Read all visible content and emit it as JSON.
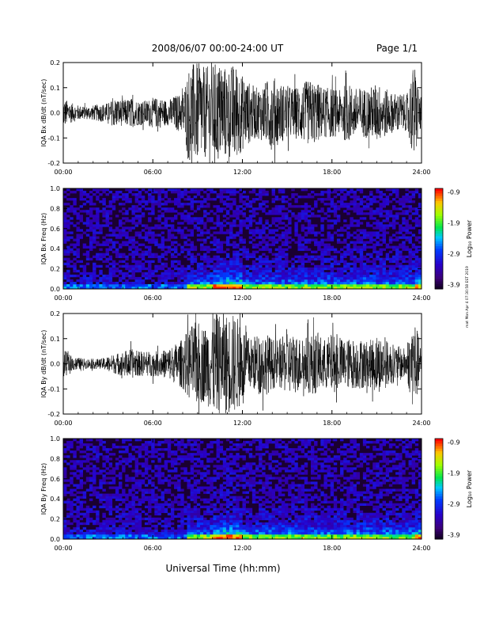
{
  "header": {
    "title": "2008/06/07  00:00-24:00 UT",
    "page": "Page 1/1"
  },
  "footer": {
    "xlabel": "Universal Time (hh:mm)"
  },
  "side_note": "mat Mon Apr 4 07:30:58 EST 2019",
  "colorbar": {
    "label": "Log₁₀ Power",
    "ticks": [
      "-0.9",
      "-1.9",
      "-2.9",
      "-3.9"
    ],
    "range": [
      -3.9,
      -0.9
    ]
  },
  "chart_data": [
    {
      "type": "line",
      "ylabel": "IQA Bx dB/dt (nT/sec)",
      "xlim": [
        0,
        24
      ],
      "ylim": [
        -0.2,
        0.2
      ],
      "xticks": [
        "00:00",
        "06:00",
        "12:00",
        "18:00",
        "24:00"
      ],
      "yticks": [
        "-0.2",
        "-0.1",
        "0.0",
        "0.1",
        "0.2"
      ],
      "envelope": {
        "t_hours": [
          0,
          0.5,
          1,
          1.5,
          2,
          2.5,
          3,
          3.5,
          4,
          4.5,
          5,
          5.5,
          6,
          6.5,
          7,
          7.5,
          8,
          8.5,
          9,
          9.5,
          10,
          10.5,
          11,
          11.5,
          12,
          12.5,
          13,
          13.5,
          14,
          14.5,
          15,
          15.5,
          16,
          16.5,
          17,
          17.5,
          18,
          18.5,
          19,
          19.5,
          20,
          20.5,
          21,
          21.5,
          22,
          22.5,
          23,
          23.5,
          24
        ],
        "amplitude": [
          0.06,
          0.04,
          0.03,
          0.025,
          0.03,
          0.035,
          0.04,
          0.06,
          0.05,
          0.06,
          0.05,
          0.05,
          0.06,
          0.06,
          0.05,
          0.07,
          0.08,
          0.2,
          0.2,
          0.18,
          0.2,
          0.2,
          0.18,
          0.2,
          0.15,
          0.12,
          0.1,
          0.12,
          0.15,
          0.12,
          0.11,
          0.1,
          0.12,
          0.13,
          0.12,
          0.1,
          0.1,
          0.09,
          0.12,
          0.1,
          0.1,
          0.1,
          0.12,
          0.1,
          0.08,
          0.08,
          0.07,
          0.2,
          0.05
        ]
      }
    },
    {
      "type": "heatmap",
      "ylabel": "IQA Bx Freq (Hz)",
      "xlim": [
        0,
        24
      ],
      "ylim": [
        0,
        1.0
      ],
      "xticks": [
        "00:00",
        "06:00",
        "12:00",
        "18:00",
        "24:00"
      ],
      "yticks": [
        "0.0",
        "0.2",
        "0.4",
        "0.6",
        "0.8",
        "1.0"
      ],
      "colorbar_range": [
        -3.9,
        -0.9
      ]
    },
    {
      "type": "line",
      "ylabel": "IQA By dB/dt (nT/sec)",
      "xlim": [
        0,
        24
      ],
      "ylim": [
        -0.2,
        0.2
      ],
      "xticks": [
        "00:00",
        "06:00",
        "12:00",
        "18:00",
        "24:00"
      ],
      "yticks": [
        "-0.2",
        "-0.1",
        "0.0",
        "0.1",
        "0.2"
      ],
      "envelope": {
        "t_hours": [
          0,
          0.5,
          1,
          1.5,
          2,
          2.5,
          3,
          3.5,
          4,
          4.5,
          5,
          5.5,
          6,
          6.5,
          7,
          7.5,
          8,
          8.5,
          9,
          9.5,
          10,
          10.5,
          11,
          11.5,
          12,
          12.5,
          13,
          13.5,
          14,
          14.5,
          15,
          15.5,
          16,
          16.5,
          17,
          17.5,
          18,
          18.5,
          19,
          19.5,
          20,
          20.5,
          21,
          21.5,
          22,
          22.5,
          23,
          23.5,
          24
        ],
        "amplitude": [
          0.06,
          0.03,
          0.025,
          0.02,
          0.02,
          0.02,
          0.03,
          0.04,
          0.05,
          0.06,
          0.05,
          0.05,
          0.05,
          0.05,
          0.06,
          0.08,
          0.1,
          0.15,
          0.17,
          0.15,
          0.2,
          0.2,
          0.2,
          0.2,
          0.16,
          0.1,
          0.12,
          0.13,
          0.1,
          0.1,
          0.12,
          0.12,
          0.1,
          0.12,
          0.12,
          0.1,
          0.12,
          0.1,
          0.1,
          0.1,
          0.1,
          0.09,
          0.12,
          0.1,
          0.08,
          0.07,
          0.06,
          0.2,
          0.05
        ]
      }
    },
    {
      "type": "heatmap",
      "ylabel": "IQA By Freq (Hz)",
      "xlim": [
        0,
        24
      ],
      "ylim": [
        0,
        1.0
      ],
      "xticks": [
        "00:00",
        "06:00",
        "12:00",
        "18:00",
        "24:00"
      ],
      "yticks": [
        "0.0",
        "0.2",
        "0.4",
        "0.6",
        "0.8",
        "1.0"
      ],
      "colorbar_range": [
        -3.9,
        -0.9
      ]
    }
  ]
}
